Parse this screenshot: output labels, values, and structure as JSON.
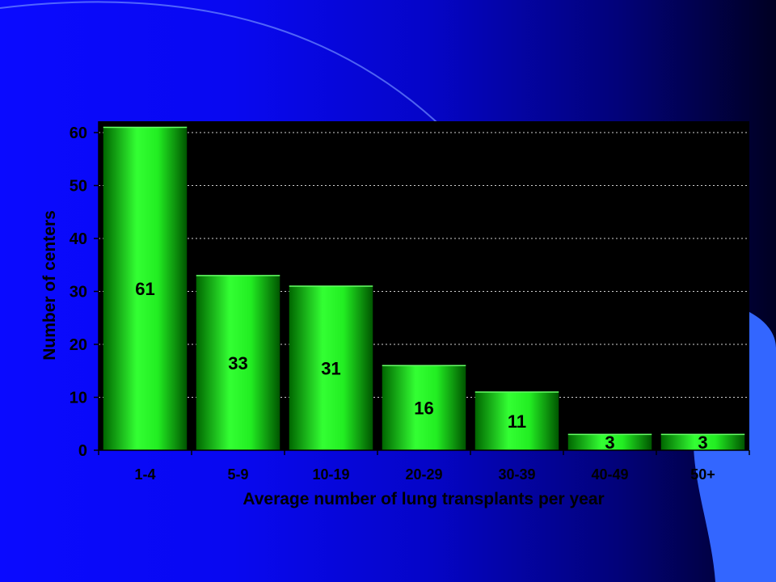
{
  "colors": {
    "plot_background": "#000000",
    "bar_light": "#33ff33",
    "bar_mid": "#00dd00",
    "bar_dark": "#006600",
    "slide_accent": "#3366ff"
  },
  "chart_data": {
    "type": "bar",
    "title": "",
    "xlabel": "Average number of lung transplants per year",
    "ylabel": "Number of centers",
    "categories": [
      "1-4",
      "5-9",
      "10-19",
      "20-29",
      "30-39",
      "40-49",
      "50+"
    ],
    "values": [
      61,
      33,
      31,
      16,
      11,
      3,
      3
    ],
    "data_labels": [
      "61",
      "33",
      "31",
      "16",
      "11",
      "3",
      "3"
    ],
    "ylim": [
      0,
      60
    ],
    "yticks": [
      0,
      10,
      20,
      30,
      40,
      50,
      60
    ],
    "grid": "horizontal dotted",
    "legend": "none"
  }
}
